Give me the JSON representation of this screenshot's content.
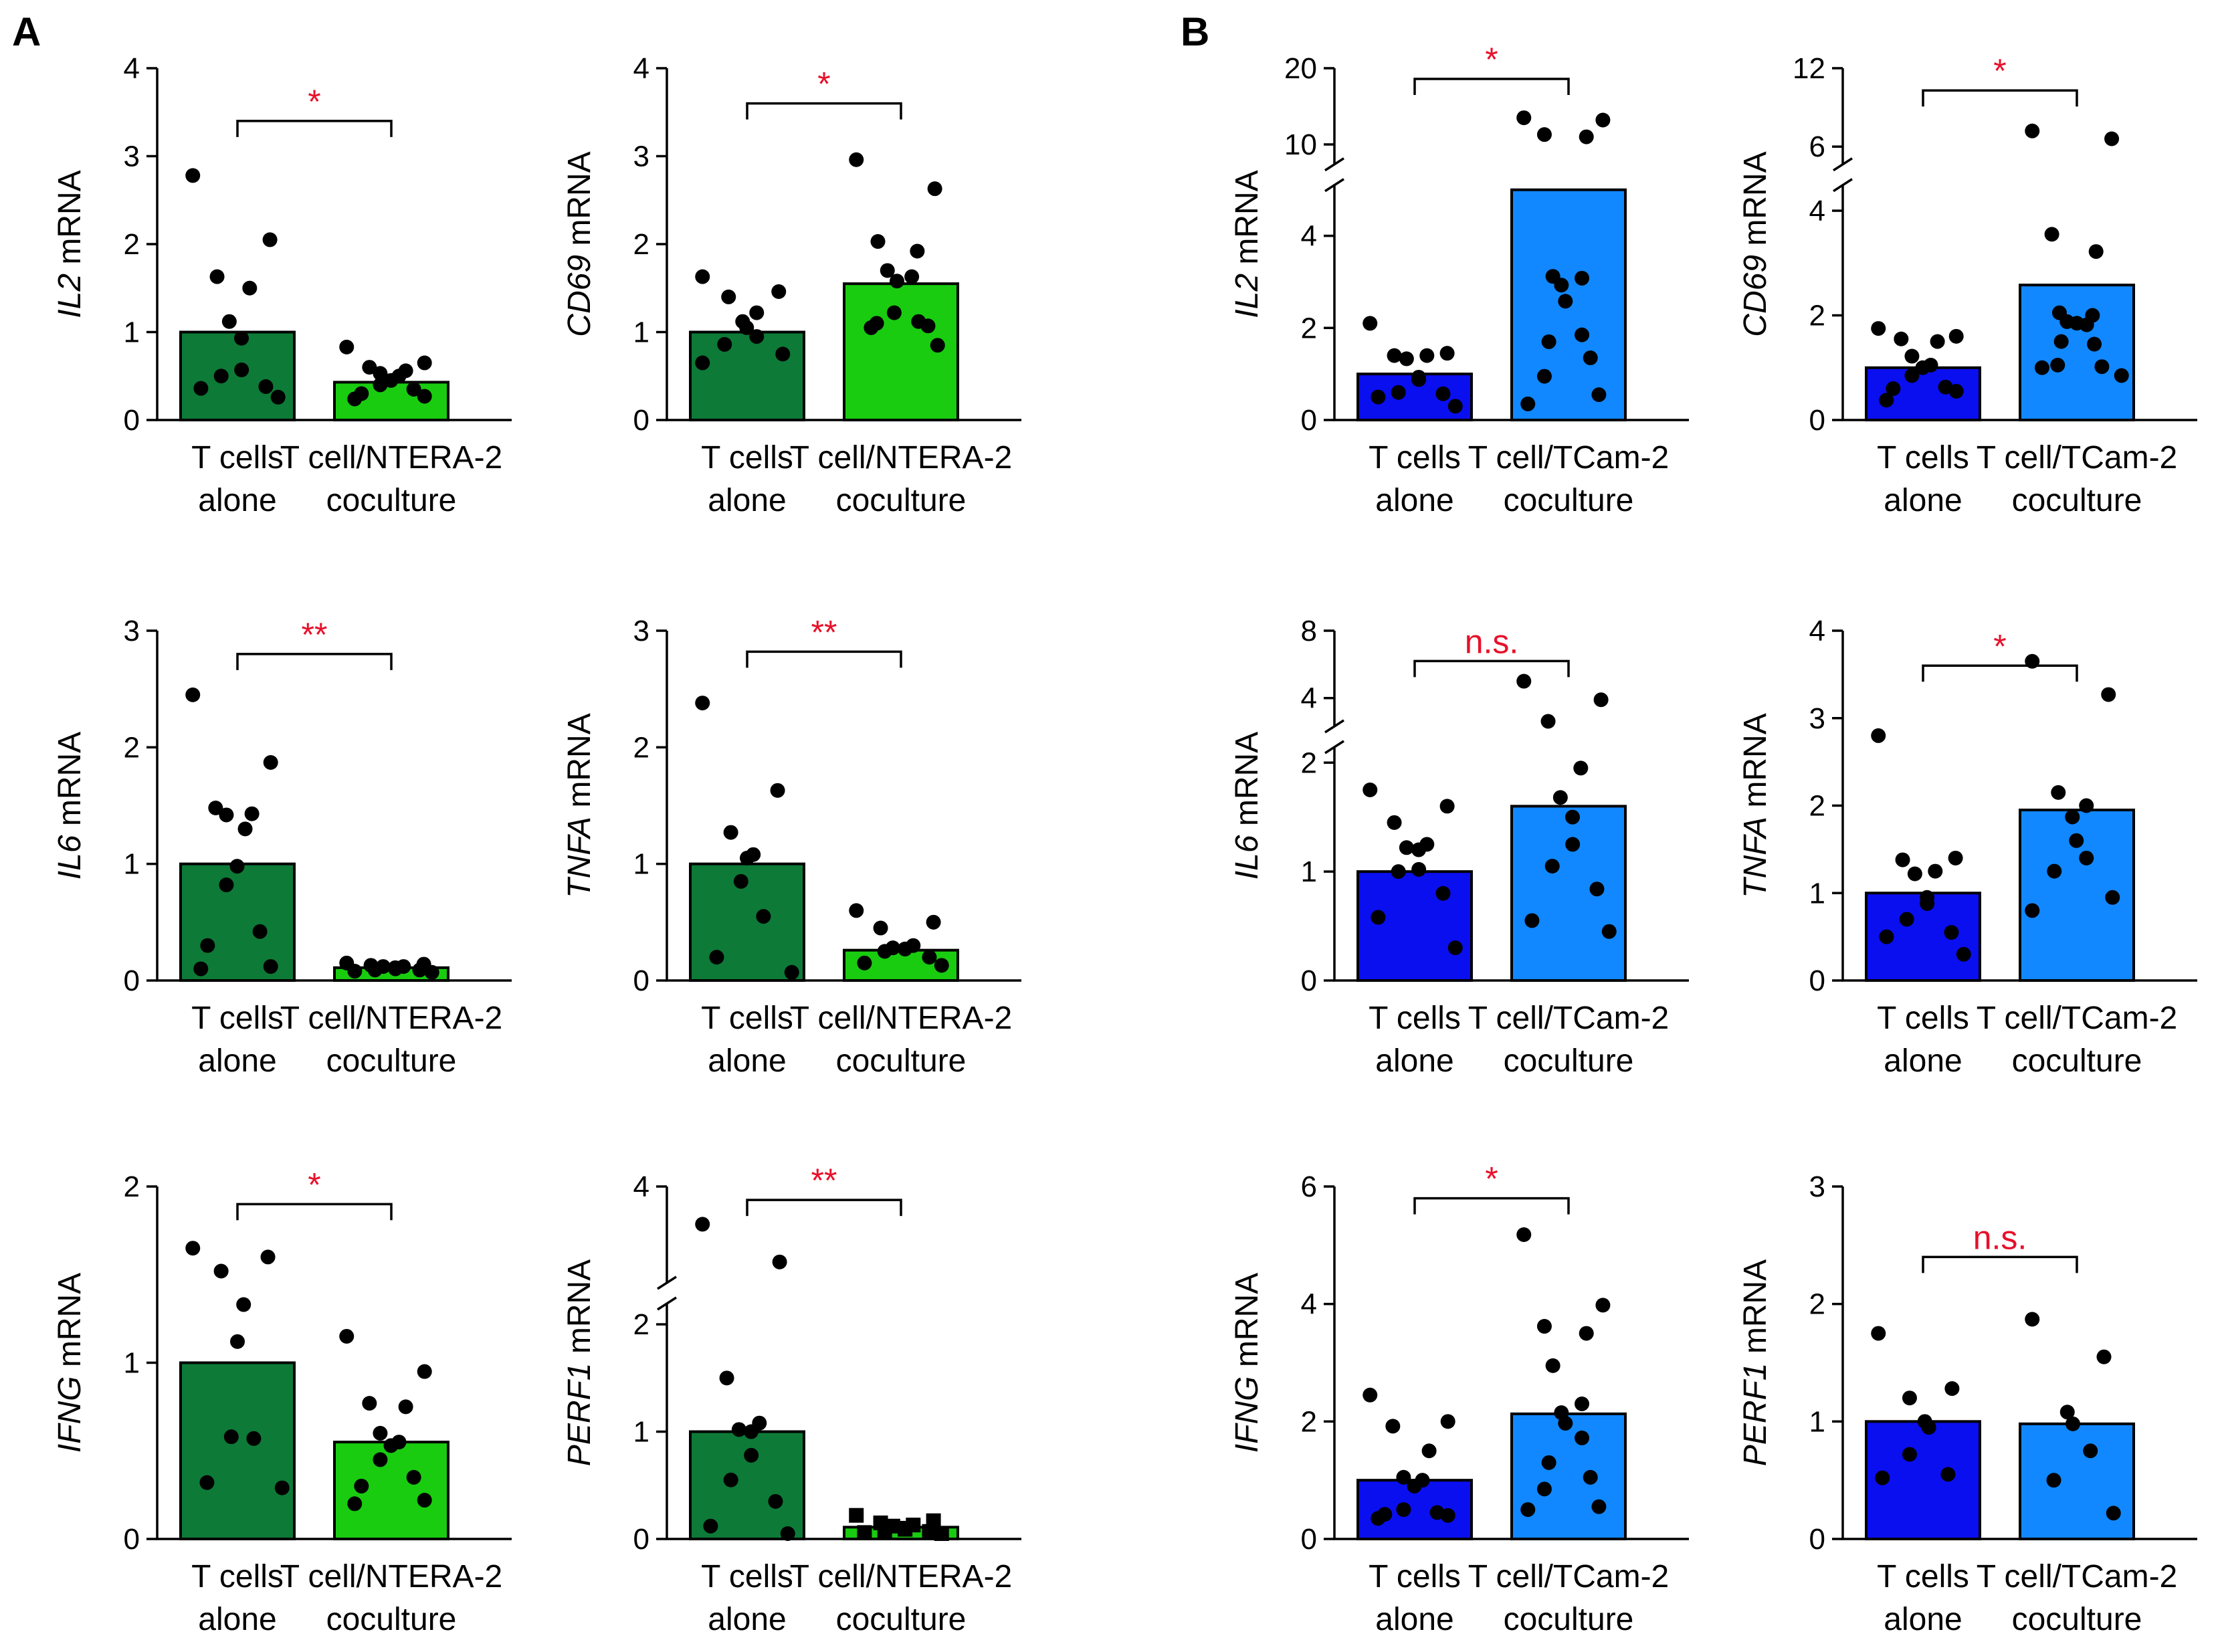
{
  "panel_labels": [
    "A",
    "B"
  ],
  "colors": {
    "alone_A": "#0d7a37",
    "coculture_A": "#19cc10",
    "alone_B": "#0a0ff0",
    "coculture_B": "#1188ff",
    "significance": "#e8102a",
    "ink": "#000000"
  },
  "chart_data": [
    {
      "type": "bar",
      "panel": "A",
      "gene": "IL2",
      "ylabel_suffix": " mRNA",
      "categories": [
        "T cells alone",
        "T cell/NTERA-2 coculture"
      ],
      "xlabels": [
        [
          "T cells",
          "alone"
        ],
        [
          "T cell/NTERA-2",
          "coculture"
        ]
      ],
      "values": [
        1.0,
        0.43
      ],
      "points": [
        [
          2.78,
          2.05,
          1.63,
          1.5,
          1.12,
          0.93,
          0.57,
          0.5,
          0.38,
          0.36,
          0.26
        ],
        [
          0.83,
          0.65,
          0.6,
          0.56,
          0.53,
          0.5,
          0.45,
          0.4,
          0.35,
          0.3,
          0.27,
          0.24
        ]
      ],
      "ylim": [
        0,
        4
      ],
      "yticks": [
        0,
        1,
        2,
        3,
        4
      ],
      "significance": "*",
      "sig_y": 3.4
    },
    {
      "type": "bar",
      "panel": "A",
      "gene": "CD69",
      "ylabel_suffix": " mRNA",
      "categories": [
        "T cells alone",
        "T cell/NTERA-2 coculture"
      ],
      "xlabels": [
        [
          "T cells",
          "alone"
        ],
        [
          "T cell/NTERA-2",
          "coculture"
        ]
      ],
      "values": [
        1.0,
        1.55
      ],
      "points": [
        [
          1.63,
          1.46,
          1.4,
          1.22,
          1.12,
          1.05,
          0.95,
          0.86,
          0.75,
          0.65
        ],
        [
          2.96,
          2.63,
          2.03,
          1.92,
          1.7,
          1.63,
          1.58,
          1.22,
          1.12,
          1.1,
          1.07,
          1.05,
          0.85
        ]
      ],
      "ylim": [
        0,
        4
      ],
      "yticks": [
        0,
        1,
        2,
        3,
        4
      ],
      "significance": "*",
      "sig_y": 3.6
    },
    {
      "type": "bar",
      "panel": "B",
      "gene": "IL2",
      "ylabel_suffix": " mRNA",
      "categories": [
        "T cells alone",
        "T cell/TCam-2 coculture"
      ],
      "xlabels": [
        [
          "T cells",
          "alone"
        ],
        [
          "T cell/TCam-2",
          "coculture"
        ]
      ],
      "values": [
        1.0,
        5.0
      ],
      "points": [
        [
          2.1,
          1.45,
          1.4,
          1.4,
          1.33,
          0.93,
          0.88,
          0.6,
          0.57,
          0.5,
          0.3
        ],
        [
          13.5,
          13.2,
          11.3,
          11.0,
          3.12,
          3.08,
          2.93,
          2.58,
          1.85,
          1.7,
          1.35,
          0.95,
          0.55,
          0.35
        ]
      ],
      "axis_break": true,
      "ylim_lower": [
        0,
        5
      ],
      "yticks_lower": [
        0,
        2,
        4
      ],
      "ylim_upper": [
        8,
        20
      ],
      "yticks_upper": [
        10,
        20
      ],
      "significance": "*",
      "sig_y": 18.6
    },
    {
      "type": "bar",
      "panel": "B",
      "gene": "CD69",
      "ylabel_suffix": " mRNA",
      "categories": [
        "T cells alone",
        "T cell/TCam-2 coculture"
      ],
      "xlabels": [
        [
          "T cells",
          "alone"
        ],
        [
          "T cell/TCam-2",
          "coculture"
        ]
      ],
      "values": [
        1.0,
        2.58
      ],
      "points": [
        [
          1.75,
          1.6,
          1.55,
          1.5,
          1.22,
          1.05,
          1.0,
          0.85,
          0.63,
          0.6,
          0.55,
          0.38
        ],
        [
          7.2,
          6.6,
          3.55,
          3.22,
          2.05,
          2.0,
          1.88,
          1.85,
          1.82,
          1.5,
          1.45,
          1.05,
          1.02,
          1.0,
          0.85
        ]
      ],
      "axis_break": true,
      "ylim_lower": [
        0,
        4.4
      ],
      "yticks_lower": [
        0,
        2,
        4
      ],
      "ylim_upper": [
        5,
        12
      ],
      "yticks_upper": [
        6,
        12
      ],
      "significance": "*",
      "sig_y": 10.3
    },
    {
      "type": "bar",
      "panel": "A",
      "gene": "IL6",
      "ylabel_suffix": " mRNA",
      "categories": [
        "T cells alone",
        "T cell/NTERA-2 coculture"
      ],
      "xlabels": [
        [
          "T cells",
          "alone"
        ],
        [
          "T cell/NTERA-2",
          "coculture"
        ]
      ],
      "values": [
        1.0,
        0.11
      ],
      "points": [
        [
          2.45,
          1.87,
          1.48,
          1.43,
          1.42,
          1.3,
          0.98,
          0.82,
          0.42,
          0.3,
          0.12,
          0.1
        ],
        [
          0.15,
          0.14,
          0.13,
          0.12,
          0.12,
          0.11,
          0.1,
          0.09,
          0.09,
          0.08,
          0.07
        ]
      ],
      "ylim": [
        0,
        3
      ],
      "yticks": [
        0,
        1,
        2,
        3
      ],
      "significance": "**",
      "sig_y": 2.8
    },
    {
      "type": "bar",
      "panel": "A",
      "gene": "TNFA",
      "ylabel_suffix": " mRNA",
      "categories": [
        "T cells alone",
        "T cell/NTERA-2 coculture"
      ],
      "xlabels": [
        [
          "T cells",
          "alone"
        ],
        [
          "T cell/NTERA-2",
          "coculture"
        ]
      ],
      "values": [
        1.0,
        0.26
      ],
      "points": [
        [
          2.38,
          1.63,
          1.27,
          1.08,
          1.05,
          0.85,
          0.55,
          0.2,
          0.07
        ],
        [
          0.6,
          0.5,
          0.45,
          0.3,
          0.28,
          0.27,
          0.27,
          0.25,
          0.2,
          0.15,
          0.13
        ]
      ],
      "ylim": [
        0,
        3
      ],
      "yticks": [
        0,
        1,
        2,
        3
      ],
      "significance": "**",
      "sig_y": 2.82
    },
    {
      "type": "bar",
      "panel": "B",
      "gene": "IL6",
      "ylabel_suffix": " mRNA",
      "categories": [
        "T cells alone",
        "T cell/TCam-2 coculture"
      ],
      "xlabels": [
        [
          "T cells",
          "alone"
        ],
        [
          "T cell/TCam-2",
          "coculture"
        ]
      ],
      "values": [
        1.0,
        1.6
      ],
      "points": [
        [
          1.75,
          1.6,
          1.45,
          1.25,
          1.22,
          1.2,
          1.02,
          1.0,
          0.8,
          0.58,
          0.3
        ],
        [
          5.0,
          3.9,
          2.62,
          1.95,
          1.68,
          1.5,
          1.25,
          1.05,
          0.84,
          0.55,
          0.45
        ]
      ],
      "axis_break": true,
      "ylim_lower": [
        0,
        2.1
      ],
      "yticks_lower": [
        0,
        1,
        2
      ],
      "ylim_upper": [
        2.6,
        8
      ],
      "yticks_upper": [
        4,
        8
      ],
      "significance": "n.s.",
      "sig_y": 6.2
    },
    {
      "type": "bar",
      "panel": "B",
      "gene": "TNFA",
      "ylabel_suffix": " mRNA",
      "categories": [
        "T cells alone",
        "T cell/TCam-2 coculture"
      ],
      "xlabels": [
        [
          "T cells",
          "alone"
        ],
        [
          "T cell/TCam-2",
          "coculture"
        ]
      ],
      "values": [
        1.0,
        1.95
      ],
      "points": [
        [
          2.8,
          1.4,
          1.38,
          1.25,
          1.22,
          0.95,
          0.88,
          0.7,
          0.55,
          0.5,
          0.3
        ],
        [
          3.65,
          3.27,
          2.15,
          2.0,
          1.87,
          1.6,
          1.4,
          1.25,
          0.95,
          0.8
        ]
      ],
      "ylim": [
        0,
        4
      ],
      "yticks": [
        0,
        1,
        2,
        3,
        4
      ],
      "significance": "*",
      "sig_y": 3.6
    },
    {
      "type": "bar",
      "panel": "A",
      "gene": "IFNG",
      "ylabel_suffix": " mRNA",
      "categories": [
        "T cells alone",
        "T cell/NTERA-2 coculture"
      ],
      "xlabels": [
        [
          "T cells",
          "alone"
        ],
        [
          "T cell/NTERA-2",
          "coculture"
        ]
      ],
      "values": [
        1.0,
        0.55
      ],
      "points": [
        [
          1.65,
          1.6,
          1.52,
          1.33,
          1.12,
          0.58,
          0.57,
          0.32,
          0.29
        ],
        [
          1.15,
          0.95,
          0.77,
          0.75,
          0.6,
          0.55,
          0.53,
          0.45,
          0.35,
          0.3,
          0.22,
          0.2
        ]
      ],
      "ylim": [
        0,
        2
      ],
      "yticks": [
        0,
        1,
        2
      ],
      "significance": "*",
      "sig_y": 1.9
    },
    {
      "type": "bar",
      "panel": "A",
      "gene": "PERF1",
      "ylabel_suffix": " mRNA",
      "categories": [
        "T cells alone",
        "T cell/NTERA-2 coculture"
      ],
      "xlabels": [
        [
          "T cells",
          "alone"
        ],
        [
          "T cell/NTERA-2",
          "coculture"
        ]
      ],
      "values": [
        1.0,
        0.11
      ],
      "points": [
        [
          3.3,
          2.6,
          1.5,
          1.08,
          1.02,
          1.0,
          0.78,
          0.55,
          0.35,
          0.12,
          0.05
        ],
        [
          0.22,
          0.17,
          0.15,
          0.13,
          0.12,
          0.1,
          0.09,
          0.08,
          0.07,
          0.06,
          0.05
        ]
      ],
      "point_marker": [
        "circle",
        "square"
      ],
      "axis_break": true,
      "ylim_lower": [
        0,
        2.15
      ],
      "yticks_lower": [
        0,
        1,
        2
      ],
      "ylim_upper": [
        2.3,
        4
      ],
      "yticks_upper": [
        4
      ],
      "significance": "**",
      "sig_y": 3.75
    },
    {
      "type": "bar",
      "panel": "B",
      "gene": "IFNG",
      "ylabel_suffix": " mRNA",
      "categories": [
        "T cells alone",
        "T cell/TCam-2 coculture"
      ],
      "xlabels": [
        [
          "T cells",
          "alone"
        ],
        [
          "T cell/TCam-2",
          "coculture"
        ]
      ],
      "values": [
        1.0,
        2.13
      ],
      "points": [
        [
          2.45,
          2.0,
          1.92,
          1.5,
          1.05,
          1.0,
          0.9,
          0.5,
          0.45,
          0.42,
          0.4,
          0.35
        ],
        [
          5.18,
          3.98,
          3.62,
          3.5,
          2.95,
          2.3,
          2.15,
          1.97,
          1.72,
          1.3,
          1.05,
          0.85,
          0.55,
          0.5
        ]
      ],
      "ylim": [
        0,
        6
      ],
      "yticks": [
        0,
        2,
        4,
        6
      ],
      "significance": "*",
      "sig_y": 5.8
    },
    {
      "type": "bar",
      "panel": "B",
      "gene": "PERF1",
      "ylabel_suffix": " mRNA",
      "categories": [
        "T cells alone",
        "T cell/TCam-2 coculture"
      ],
      "xlabels": [
        [
          "T cells",
          "alone"
        ],
        [
          "T cell/TCam-2",
          "coculture"
        ]
      ],
      "values": [
        1.0,
        0.98
      ],
      "points": [
        [
          1.75,
          1.28,
          1.2,
          1.0,
          0.95,
          0.72,
          0.55,
          0.52
        ],
        [
          1.87,
          1.55,
          1.08,
          0.98,
          0.75,
          0.5,
          0.22
        ]
      ],
      "ylim": [
        0,
        3
      ],
      "yticks": [
        0,
        1,
        2,
        3
      ],
      "significance": "n.s.",
      "sig_y": 2.4
    }
  ]
}
